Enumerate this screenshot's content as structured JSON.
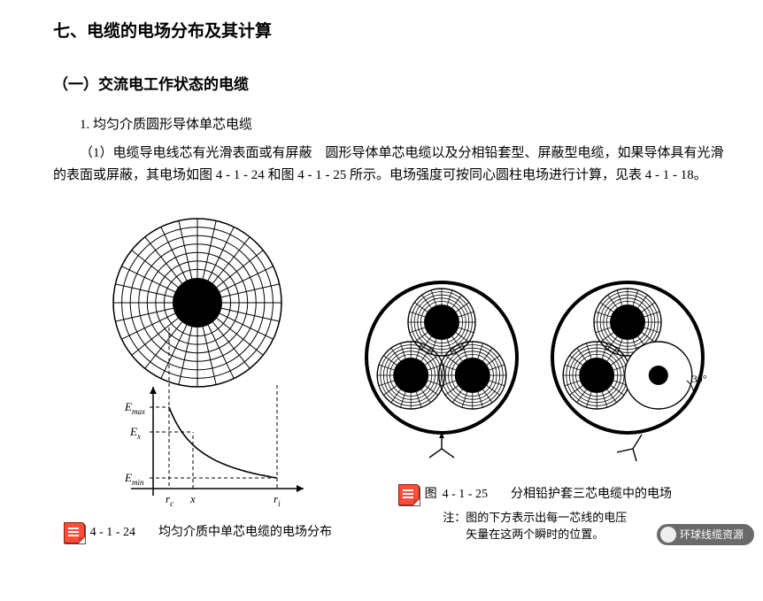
{
  "section_title": "七、电缆的电场分布及其计算",
  "subsection_title": "（一）交流电工作状态的电缆",
  "num_heading": "1. 均匀介质圆形导体单芯电缆",
  "body_text": "（1）电缆导电线芯有光滑表面或有屏蔽　圆形导体单芯电缆以及分相铅套型、屏蔽型电缆，如果导体具有光滑的表面或屏蔽，其电场如图 4 - 1 - 24 和图 4 - 1 - 25 所示。电场强度可按同心圆柱电场进行计算，见表 4 - 1 - 18。",
  "fig_left": {
    "labels": {
      "emax": "E",
      "emax_sub": "max",
      "ex": "E",
      "ex_sub": "x",
      "emin": "E",
      "emin_sub": "min",
      "rc": "r",
      "rc_sub": "c",
      "x": "x",
      "ri": "r",
      "ri_sub": "i"
    },
    "caption_num": "4 - 1 - 24",
    "caption_text": "均匀介质中单芯电缆的电场分布",
    "style": {
      "outer_r": 95,
      "inner_r": 28,
      "n_radial": 28,
      "n_rings": 7,
      "stroke": "#000000",
      "fill_core": "#000000",
      "curve_w": 150,
      "curve_h": 100
    }
  },
  "fig_right": {
    "angle_label": "30°",
    "caption_num": "4 - 1 - 25",
    "caption_text": "分相铅护套三芯电缆中的电场",
    "note_line1": "注：图的下方表示出每一芯线的电压",
    "note_line2": "矢量在这两个瞬时的位置。",
    "style": {
      "big_r": 85,
      "sub_off": 40,
      "sub_outer": 38,
      "sub_core": 20,
      "n_radial": 20,
      "n_rings": 5,
      "stroke": "#000000",
      "border_w": 4
    }
  },
  "watermark": "环球线缆资源"
}
